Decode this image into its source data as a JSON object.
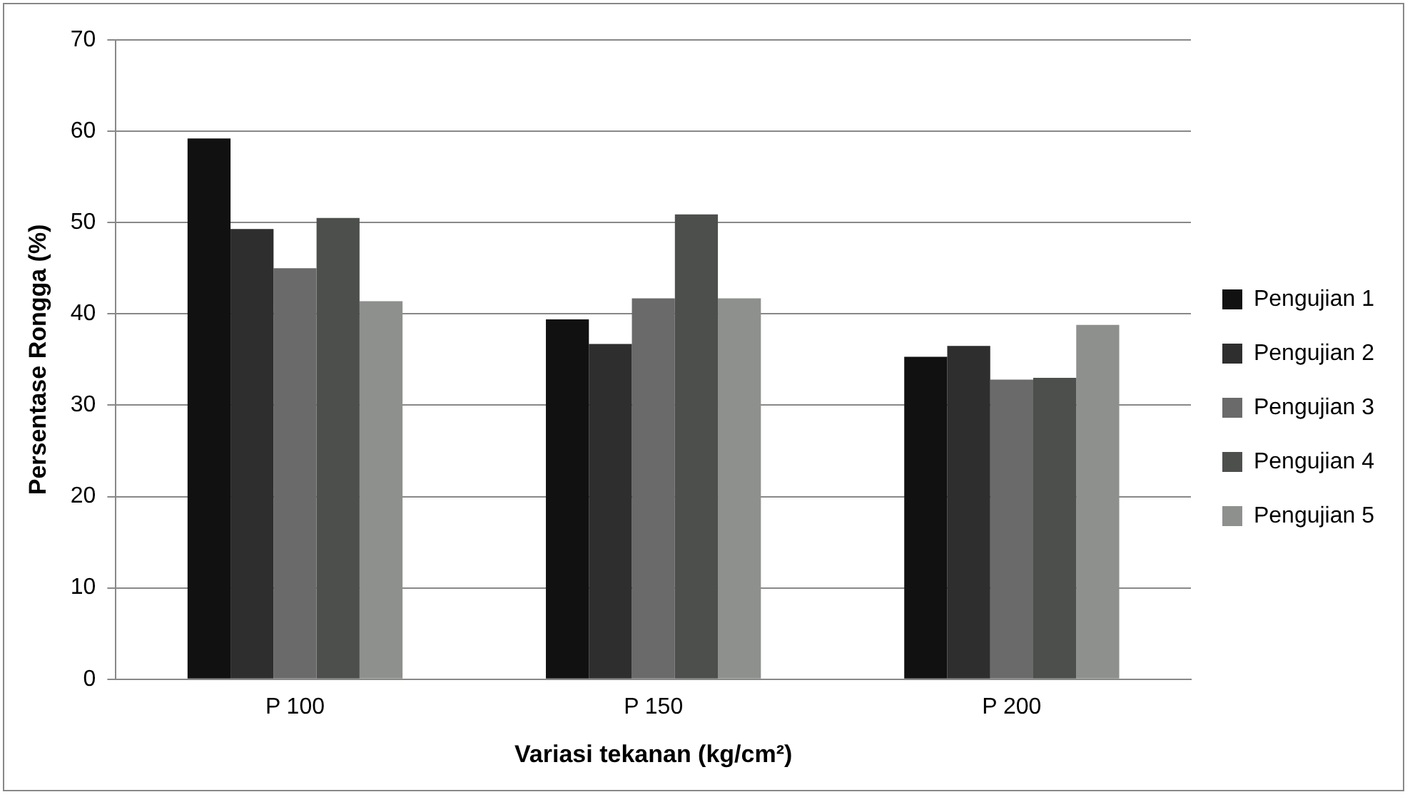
{
  "chart_data": {
    "type": "bar",
    "xlabel": "Variasi tekanan (kg/cm²)",
    "ylabel": "Persentase Rongga (%)",
    "categories": [
      "P 100",
      "P 150",
      "P 200"
    ],
    "series": [
      {
        "name": "Pengujian 1",
        "color": "#111111",
        "values": [
          59.2,
          39.4,
          35.3
        ]
      },
      {
        "name": "Pengujian 2",
        "color": "#2e2e2e",
        "values": [
          49.3,
          36.7,
          36.5
        ]
      },
      {
        "name": "Pengujian 3",
        "color": "#6a6a6a",
        "values": [
          45.0,
          41.7,
          32.8
        ]
      },
      {
        "name": "Pengujian 4",
        "color": "#4d4f4d",
        "values": [
          50.5,
          50.9,
          33.0
        ]
      },
      {
        "name": "Pengujian 5",
        "color": "#8e908d",
        "values": [
          41.4,
          41.7,
          38.8
        ]
      }
    ],
    "ylim": [
      0,
      70
    ],
    "yticks": [
      0,
      10,
      20,
      30,
      40,
      50,
      60,
      70
    ],
    "grid": "y",
    "legend": "right"
  }
}
